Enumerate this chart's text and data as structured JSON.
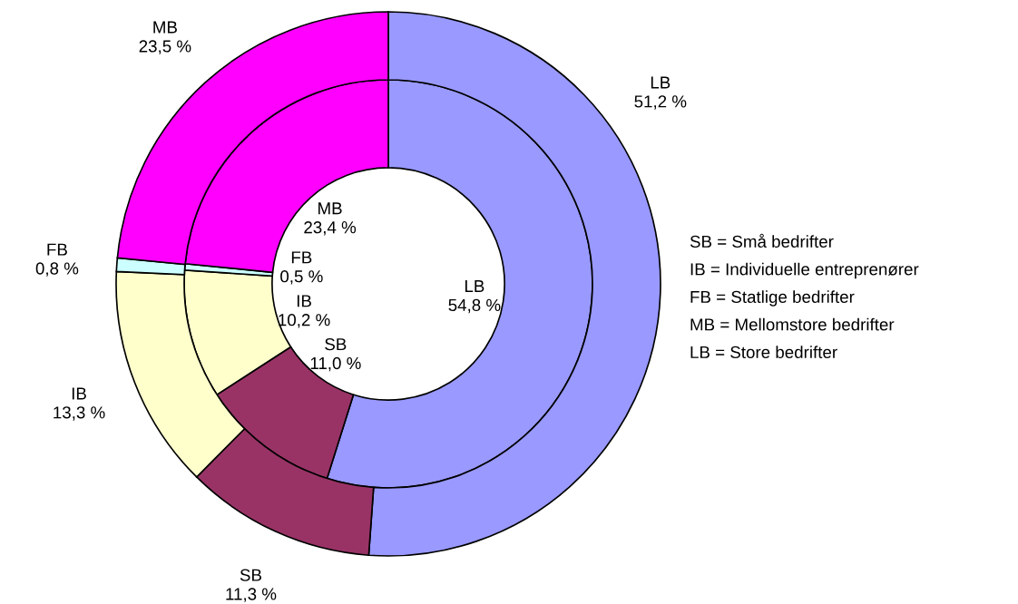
{
  "chart_data": {
    "type": "donut",
    "categories": [
      "LB",
      "SB",
      "IB",
      "FB",
      "MB"
    ],
    "colors": [
      "#9999ff",
      "#993366",
      "#ffffcc",
      "#ccffff",
      "#ff00ff"
    ],
    "series": [
      {
        "values": [
          54.8,
          11.0,
          10.2,
          0.5,
          23.4
        ],
        "value_labels": [
          "54,8 %",
          "11,0 %",
          "10,2 %",
          "0,5 %",
          "23,4 %"
        ]
      },
      {
        "values": [
          51.2,
          11.3,
          13.3,
          0.8,
          23.5
        ],
        "value_labels": [
          "51,2 %",
          "11,3 %",
          "13,3 %",
          "0,8 %",
          "23,5 %"
        ]
      }
    ],
    "annotations": [
      "SB = Små bedrifter",
      "IB = Individuelle entreprenører",
      "FB = Statlige bedrifter",
      "MB = Mellomstore bedrifter",
      "LB = Store bedrifter"
    ]
  }
}
